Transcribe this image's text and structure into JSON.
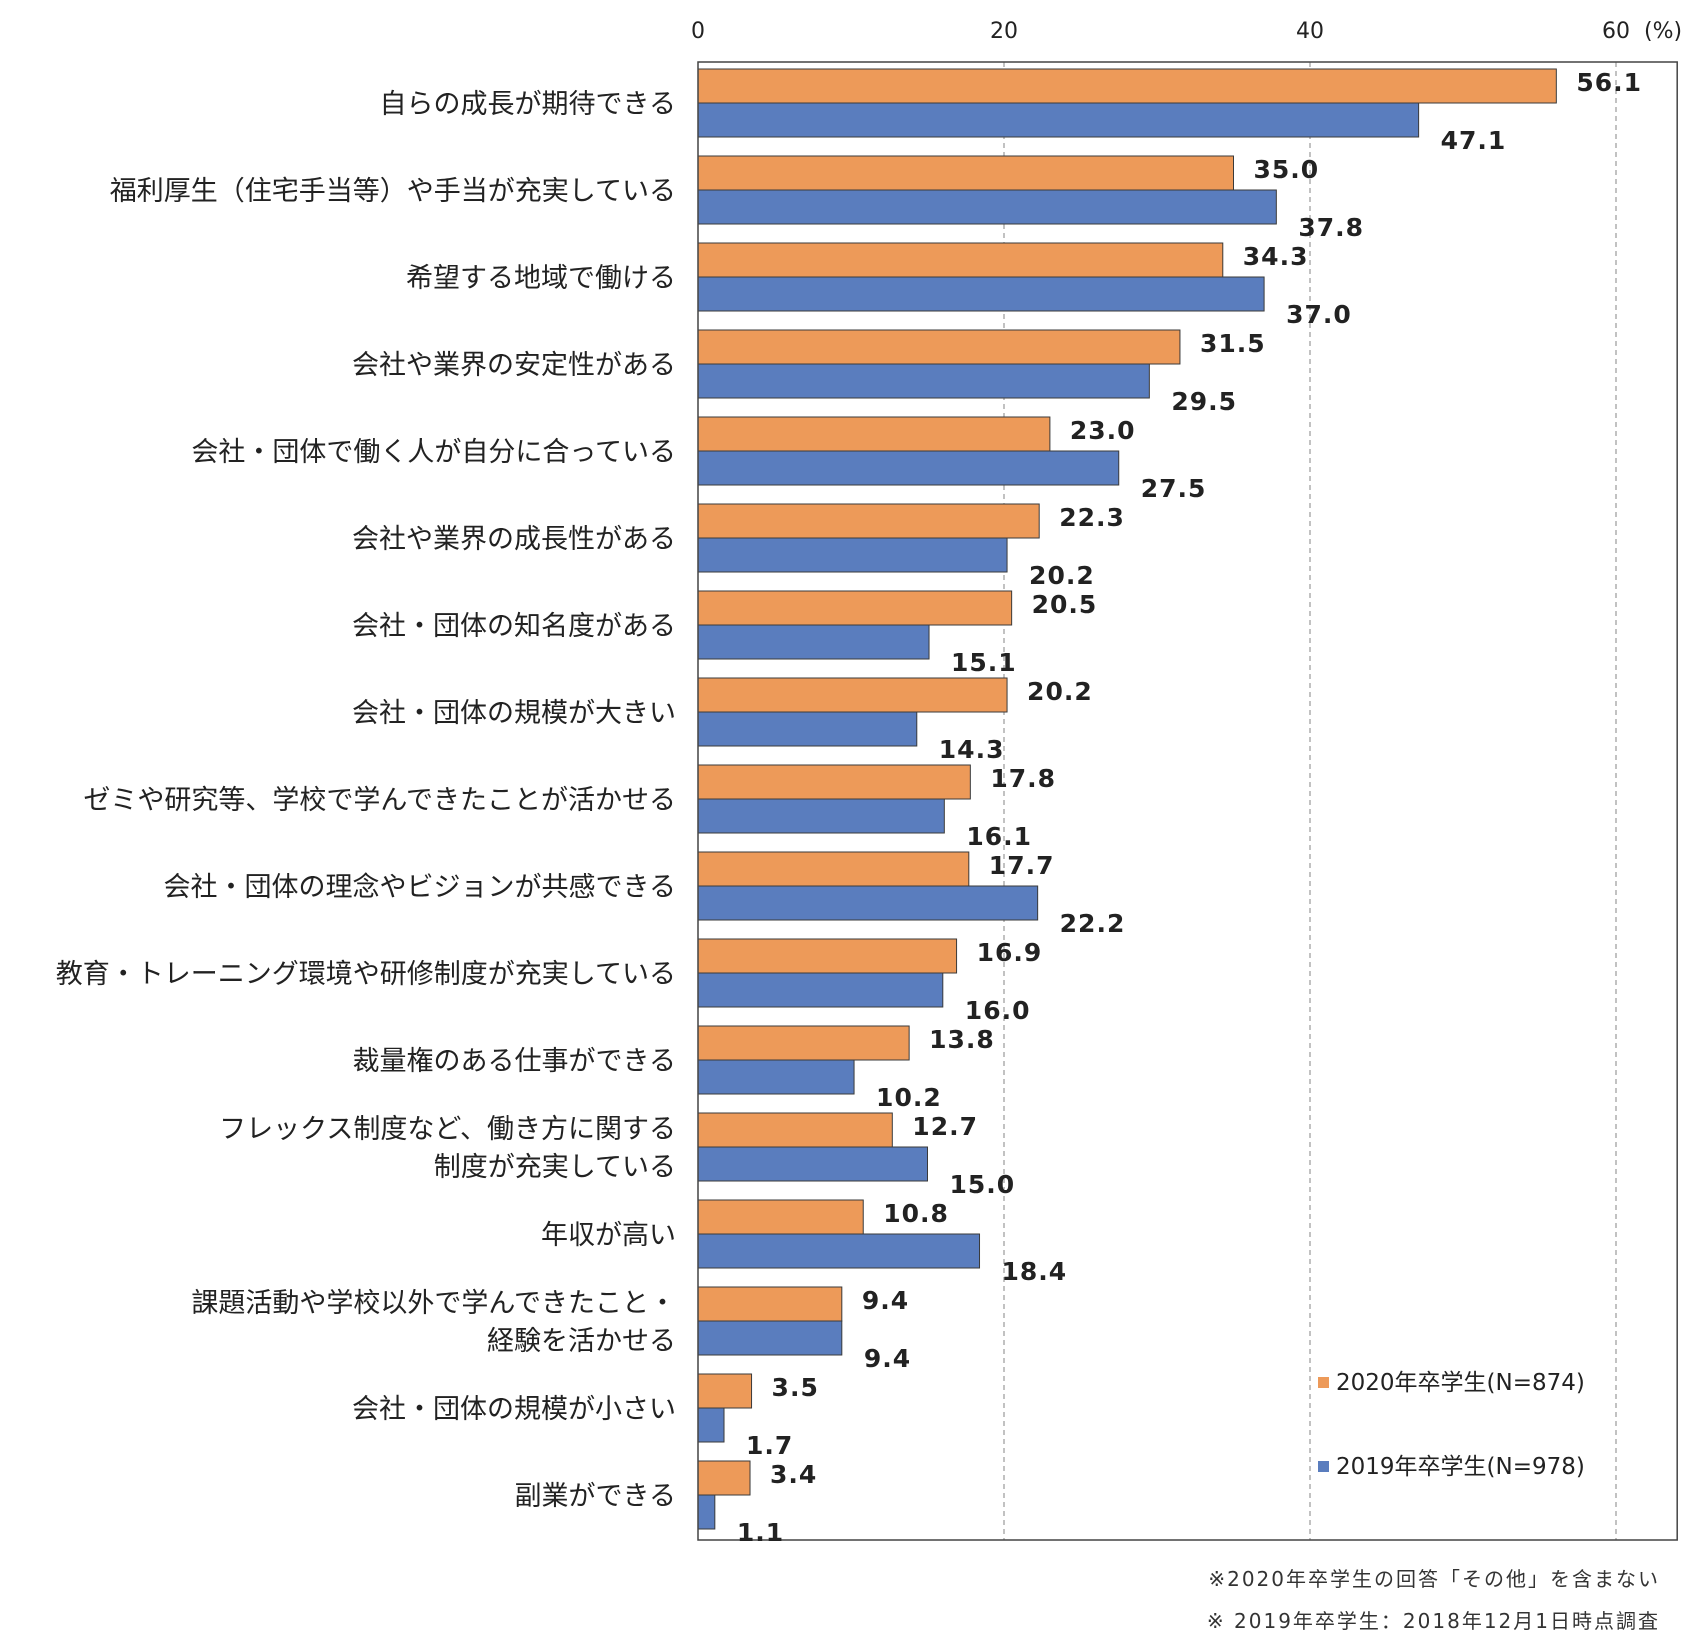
{
  "chart_data": {
    "type": "bar",
    "orientation": "horizontal",
    "unit": "(%)",
    "xlim": [
      0,
      64
    ],
    "xticks": [
      0,
      20,
      40,
      60
    ],
    "grid": true,
    "legend_position": "bottom-right",
    "categories": [
      [
        "自らの成長が期待できる"
      ],
      [
        "福利厚生（住宅手当等）や手当が充実している"
      ],
      [
        "希望する地域で働ける"
      ],
      [
        "会社や業界の安定性がある"
      ],
      [
        "会社・団体で働く人が自分に合っている"
      ],
      [
        "会社や業界の成長性がある"
      ],
      [
        "会社・団体の知名度がある"
      ],
      [
        "会社・団体の規模が大きい"
      ],
      [
        "ゼミや研究等、学校で学んできたことが活かせる"
      ],
      [
        "会社・団体の理念やビジョンが共感できる"
      ],
      [
        "教育・トレーニング環境や研修制度が充実している"
      ],
      [
        "裁量権のある仕事ができる"
      ],
      [
        "フレックス制度など、働き方に関する",
        "制度が充実している"
      ],
      [
        "年収が高い"
      ],
      [
        "課題活動や学校以外で学んできたこと・",
        "経験を活かせる"
      ],
      [
        "会社・団体の規模が小さい"
      ],
      [
        "副業ができる"
      ]
    ],
    "series": [
      {
        "name": "2020年卒学生(N=874)",
        "color": "#ED9A59",
        "values": [
          56.1,
          35.0,
          34.3,
          31.5,
          23.0,
          22.3,
          20.5,
          20.2,
          17.8,
          17.7,
          16.9,
          13.8,
          12.7,
          10.8,
          9.4,
          3.5,
          3.4
        ],
        "labels": [
          "56.1",
          "35.0",
          "34.3",
          "31.5",
          "23.0",
          "22.3",
          "20.5",
          "20.2",
          "17.8",
          "17.7",
          "16.9",
          "13.8",
          "12.7",
          "10.8",
          "9.4",
          "3.5",
          "3.4"
        ]
      },
      {
        "name": "2019年卒学生(N=978)",
        "color": "#5A7DBE",
        "values": [
          47.1,
          37.8,
          37.0,
          29.5,
          27.5,
          20.2,
          15.1,
          14.3,
          16.1,
          22.2,
          16.0,
          10.2,
          15.0,
          18.4,
          9.4,
          1.7,
          1.1
        ],
        "labels": [
          "47.1",
          "37.8",
          "37.0",
          "29.5",
          "27.5",
          "20.2",
          "15.1",
          "14.3",
          "16.1",
          "22.2",
          "16.0",
          "10.2",
          "15.0",
          "18.4",
          "9.4",
          "1.7",
          "1.1"
        ]
      }
    ]
  },
  "notes": {
    "note1": "※2020年卒学生の回答「その他」を含まない",
    "note2": "※ 2019年卒学生：2018年12月1日時点調査"
  }
}
